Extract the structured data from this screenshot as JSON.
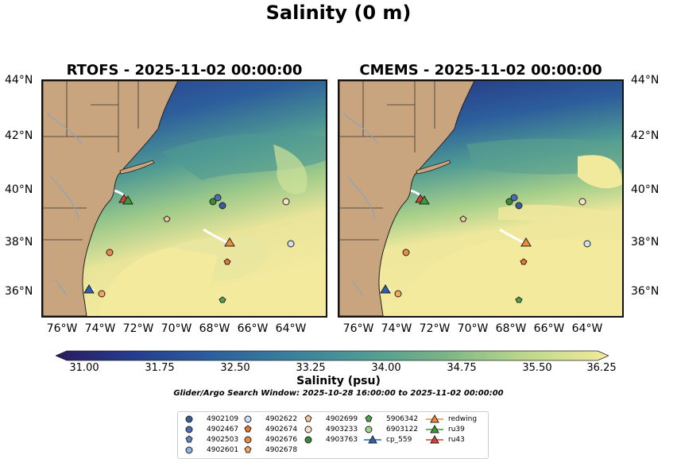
{
  "figure": {
    "title": "Salinity (0 m)",
    "left_panel_title": "RTOFS - 2025-11-02 00:00:00",
    "right_panel_title": "CMEMS - 2025-11-02 00:00:00",
    "lat_ticks": [
      "44°N",
      "42°N",
      "40°N",
      "38°N",
      "36°N"
    ],
    "lon_ticks": [
      "76°W",
      "74°W",
      "72°W",
      "70°W",
      "68°W",
      "66°W",
      "64°W"
    ],
    "colorbar": {
      "label": "Salinity (psu)",
      "ticks": [
        "31.00",
        "31.75",
        "32.50",
        "33.25",
        "34.00",
        "34.75",
        "35.50",
        "36.25"
      ],
      "colors": [
        "#2a1a5e",
        "#253d8c",
        "#2c5e9c",
        "#3a7e9c",
        "#4f9a93",
        "#79b486",
        "#b9d68c",
        "#f3ea9e"
      ]
    },
    "search_window": "Glider/Argo Search Window: 2025-10-28 16:00:00 to 2025-11-02 00:00:00",
    "map_colors": {
      "land": "#c8a57e",
      "ocean_fresh": "#232b76",
      "ocean_mid": "#3d8a94",
      "ocean_salty": "#f3ea9e"
    }
  },
  "chart_data": {
    "type": "map",
    "extent": {
      "lon": [
        -77,
        -63
      ],
      "lat": [
        35,
        44
      ]
    },
    "markers": [
      {
        "id": "4902109",
        "shape": "circle",
        "color": "#3a5c9c",
        "lon": -68.3,
        "lat": 39.4
      },
      {
        "id": "4902467",
        "shape": "circle",
        "color": "#4a6fb0",
        "lon": -68.6,
        "lat": 39.7
      },
      {
        "id": "4902503",
        "shape": "pentagon",
        "color": "#5e86c4",
        "lon": -74.6,
        "lat": 36.2
      },
      {
        "id": "4902601",
        "shape": "circle",
        "color": "#8fb3e0",
        "lon": -64.8,
        "lat": 37.9
      },
      {
        "id": "4902622",
        "shape": "circle",
        "color": "#cde0f5",
        "lon": -64.8,
        "lat": 37.9
      },
      {
        "id": "4902674",
        "shape": "pentagon",
        "color": "#e8782f",
        "lon": -68.0,
        "lat": 37.2
      },
      {
        "id": "4902676",
        "shape": "circle",
        "color": "#ea8a45",
        "lon": -73.9,
        "lat": 37.6
      },
      {
        "id": "4902678",
        "shape": "pentagon",
        "color": "#f0a766",
        "lon": -74.1,
        "lat": 36.0
      },
      {
        "id": "4902699",
        "shape": "pentagon",
        "color": "#f5c99b",
        "lon": -71.0,
        "lat": 39.0
      },
      {
        "id": "4903233",
        "shape": "circle",
        "color": "#f8e0c8",
        "lon": -65.1,
        "lat": 39.6
      },
      {
        "id": "4903763",
        "shape": "circle",
        "color": "#3a8a3a",
        "lon": -68.8,
        "lat": 39.6
      },
      {
        "id": "5906342",
        "shape": "pentagon",
        "color": "#4da64d",
        "lon": -68.2,
        "lat": 35.7
      },
      {
        "id": "6903122",
        "shape": "circle",
        "color": "#9fd48a",
        "lon": -68.8,
        "lat": 39.6
      },
      {
        "id": "cp_559",
        "shape": "triangle",
        "color": "#2e60b0",
        "lon": -74.9,
        "lat": 36.2
      },
      {
        "id": "redwing",
        "shape": "triangle",
        "color": "#f08a3c",
        "lon": -67.9,
        "lat": 37.9
      },
      {
        "id": "ru39",
        "shape": "triangle",
        "color": "#3a9a3a",
        "lon": -73.0,
        "lat": 39.6
      },
      {
        "id": "ru43",
        "shape": "triangle",
        "color": "#d94030",
        "lon": -73.2,
        "lat": 39.7
      }
    ]
  },
  "legend": {
    "col1": [
      "4902109",
      "4902467",
      "4902503",
      "4902601"
    ],
    "col2": [
      "4902622",
      "4902674",
      "4902676",
      "4902678"
    ],
    "col3": [
      "4902699",
      "4903233",
      "4903763"
    ],
    "col4": [
      "5906342",
      "6903122",
      "cp_559"
    ],
    "col5": [
      "redwing",
      "ru39",
      "ru43"
    ]
  }
}
